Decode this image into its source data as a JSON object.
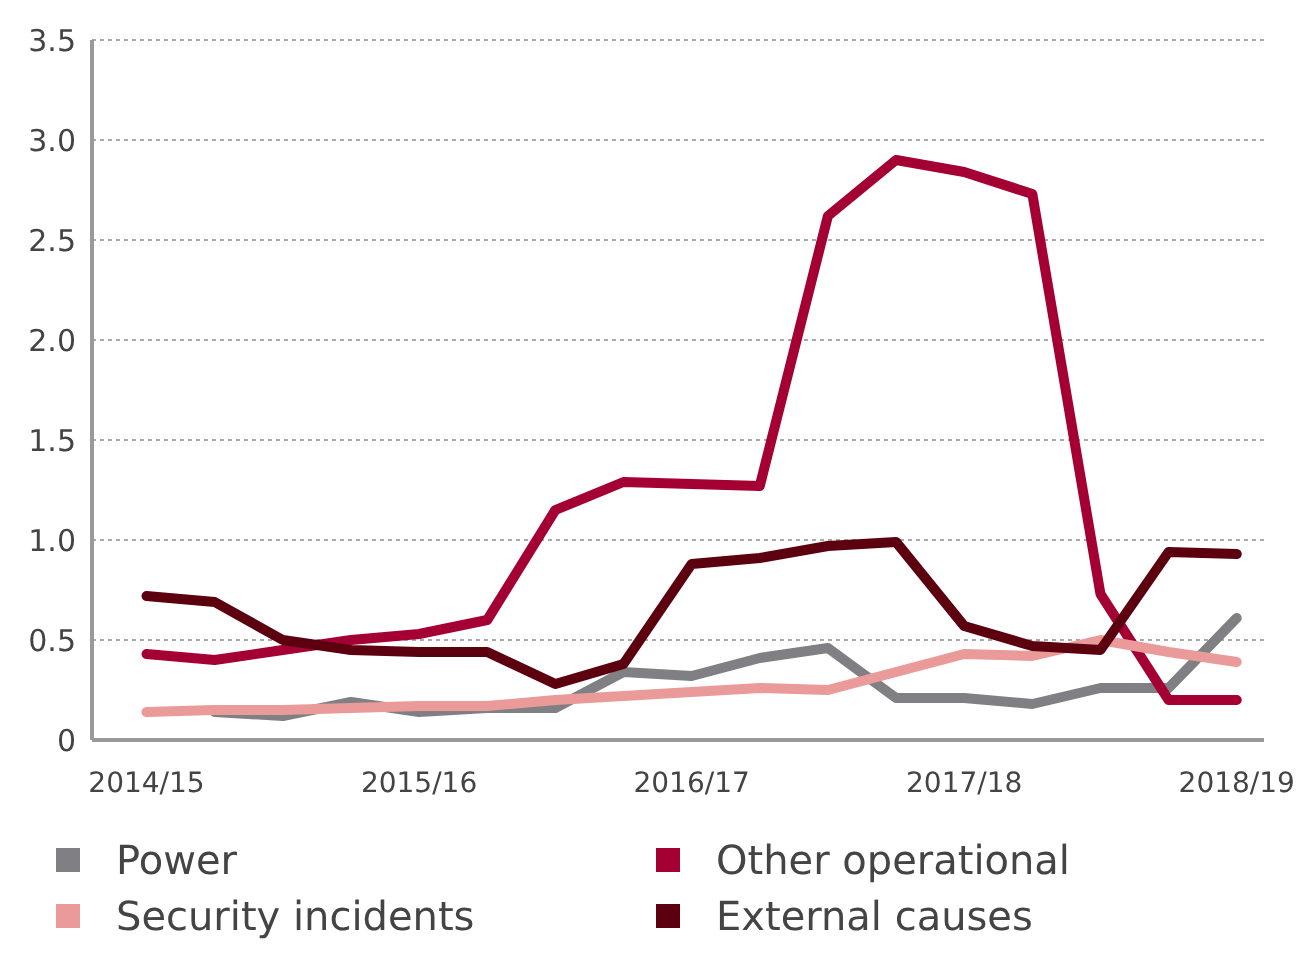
{
  "chart_data": {
    "type": "line",
    "categories": [
      "2014/15",
      null,
      null,
      null,
      "2015/16",
      null,
      null,
      null,
      "2016/17",
      null,
      null,
      null,
      "2017/18",
      null,
      null,
      null,
      "2018/19"
    ],
    "series": [
      {
        "name": "Power",
        "color": "#808084",
        "values": [
          null,
          0.14,
          0.12,
          0.19,
          0.14,
          0.16,
          0.16,
          0.34,
          0.32,
          0.41,
          0.46,
          0.21,
          0.21,
          0.18,
          0.26,
          0.26,
          0.61
        ]
      },
      {
        "name": "Other operational",
        "color": "#a50034",
        "values": [
          0.43,
          0.4,
          0.45,
          0.5,
          0.53,
          0.6,
          1.15,
          1.29,
          1.28,
          1.27,
          2.62,
          2.9,
          2.84,
          2.73,
          0.73,
          0.2,
          0.2
        ]
      },
      {
        "name": "Security incidents",
        "color": "#eb9a9a",
        "values": [
          0.14,
          0.15,
          0.15,
          0.16,
          0.17,
          0.17,
          0.2,
          0.22,
          0.24,
          0.26,
          0.25,
          0.34,
          0.43,
          0.42,
          0.5,
          0.44,
          0.39
        ]
      },
      {
        "name": "External causes",
        "color": "#5c0010",
        "values": [
          0.72,
          0.69,
          0.5,
          0.45,
          0.44,
          0.44,
          0.28,
          0.38,
          0.88,
          0.91,
          0.97,
          0.99,
          0.57,
          0.47,
          0.45,
          0.94,
          0.93
        ]
      }
    ],
    "ylim": [
      0,
      3.5
    ],
    "yticks": [
      0,
      0.5,
      {
        "value": 1,
        "label": "1.0"
      },
      1.5,
      {
        "value": 2,
        "label": "2.0"
      },
      2.5,
      {
        "value": 3,
        "label": "3.0"
      },
      3.5
    ],
    "grid": "y",
    "legend": "bottom",
    "marker": "none",
    "line_style": "solid"
  }
}
